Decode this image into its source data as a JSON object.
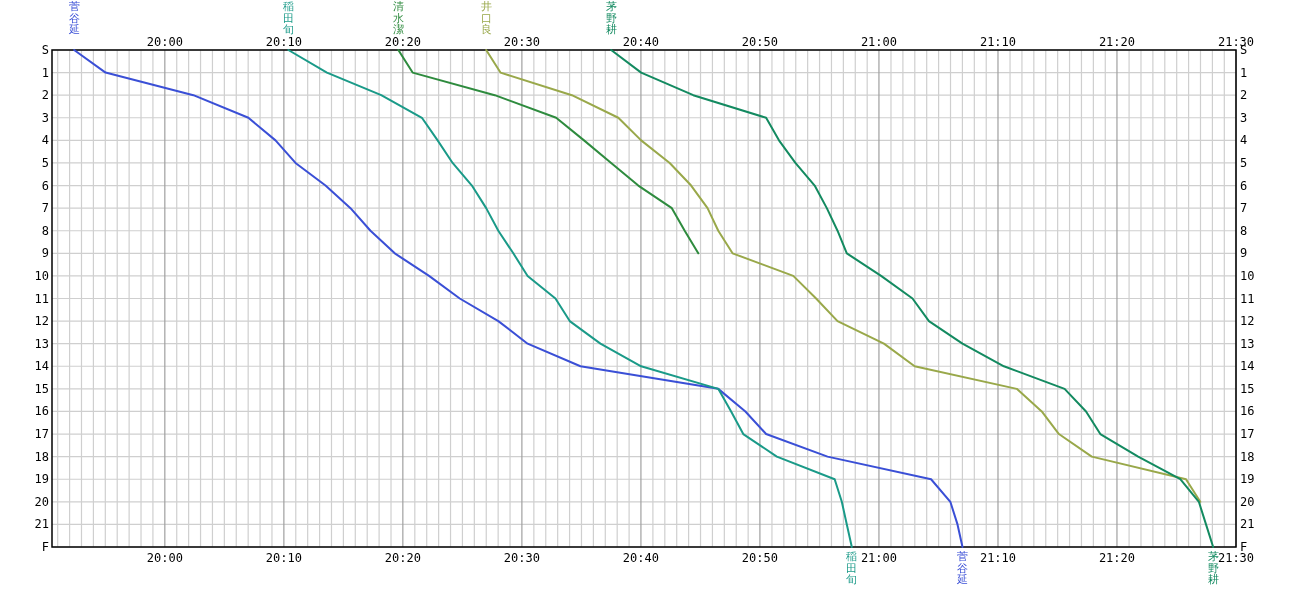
{
  "chart_data": {
    "type": "line",
    "grid": true,
    "xlim": [
      19.842,
      21.5
    ],
    "xticks": [
      {
        "value": 20,
        "label": "20:00"
      },
      {
        "value": 20.1667,
        "label": "20:10"
      },
      {
        "value": 20.3333,
        "label": "20:20"
      },
      {
        "value": 20.5,
        "label": "20:30"
      },
      {
        "value": 20.6667,
        "label": "20:40"
      },
      {
        "value": 20.8333,
        "label": "20:50"
      },
      {
        "value": 21,
        "label": "21:00"
      },
      {
        "value": 21.1667,
        "label": "21:10"
      },
      {
        "value": 21.3333,
        "label": "21:20"
      },
      {
        "value": 21.5,
        "label": "21:30"
      }
    ],
    "x2lim": [
      19.842,
      21.5
    ],
    "x2ticks": [
      {
        "value": 20,
        "label": "20:00"
      },
      {
        "value": 20.1667,
        "label": "20:10"
      },
      {
        "value": 20.3333,
        "label": "20:20"
      },
      {
        "value": 20.5,
        "label": "20:30"
      },
      {
        "value": 20.6667,
        "label": "20:40"
      },
      {
        "value": 20.8333,
        "label": "20:50"
      },
      {
        "value": 21,
        "label": "21:00"
      },
      {
        "value": 21.1667,
        "label": "21:10"
      },
      {
        "value": 21.3333,
        "label": "21:20"
      },
      {
        "value": 21.5,
        "label": "21:30"
      }
    ],
    "ylim": [
      22,
      0
    ],
    "yticks": [
      {
        "value": 0,
        "label": "S"
      },
      1,
      2,
      3,
      4,
      5,
      6,
      7,
      8,
      9,
      10,
      11,
      12,
      13,
      14,
      15,
      16,
      17,
      18,
      19,
      20,
      21,
      {
        "value": 22,
        "label": "F"
      }
    ],
    "y2lim": [
      22,
      0
    ],
    "y2ticks": [
      {
        "value": 0,
        "label": "S"
      },
      1,
      2,
      3,
      4,
      5,
      6,
      7,
      8,
      9,
      10,
      11,
      12,
      13,
      14,
      15,
      16,
      17,
      18,
      19,
      20,
      21,
      {
        "value": 22,
        "label": "F"
      }
    ],
    "series": [
      {
        "name": "菅谷延",
        "color": "#3a4fd6",
        "x": [
          19.873,
          19.917,
          20.04,
          20.117,
          20.155,
          20.183,
          20.225,
          20.26,
          20.288,
          20.322,
          20.37,
          20.413,
          20.467,
          20.508,
          20.582,
          20.775,
          20.813,
          20.842,
          20.928,
          21.073,
          21.1,
          21.11,
          21.117
        ],
        "values": [
          0,
          1,
          2,
          3,
          4,
          5,
          6,
          7,
          8,
          9,
          10,
          11,
          12,
          13,
          14,
          15,
          16,
          17,
          18,
          19,
          20,
          21,
          22
        ]
      },
      {
        "name": "稲田旬",
        "color": "#1a9a88",
        "x": [
          20.173,
          20.227,
          20.303,
          20.36,
          20.382,
          20.403,
          20.43,
          20.45,
          20.467,
          20.488,
          20.508,
          20.547,
          20.567,
          20.61,
          20.667,
          20.775,
          20.793,
          20.81,
          20.857,
          20.938,
          20.948,
          20.955,
          20.962
        ],
        "values": [
          0,
          1,
          2,
          3,
          4,
          5,
          6,
          7,
          8,
          9,
          10,
          11,
          12,
          13,
          14,
          15,
          16,
          17,
          18,
          19,
          20,
          21,
          22
        ]
      },
      {
        "name": "清水潔",
        "color": "#2e8b3e",
        "x": [
          20.327,
          20.347,
          20.462,
          20.548,
          20.587,
          20.625,
          20.663,
          20.71,
          20.728,
          20.747
        ],
        "values": [
          0,
          1,
          2,
          3,
          4,
          5,
          6,
          7,
          8,
          9
        ]
      },
      {
        "name": "井口良",
        "color": "#99a84a",
        "x": [
          20.45,
          20.47,
          20.57,
          20.635,
          20.667,
          20.707,
          20.737,
          20.76,
          20.775,
          20.795,
          20.88,
          20.912,
          20.942,
          21.007,
          21.05,
          21.193,
          21.228,
          21.252,
          21.298,
          21.43,
          21.45
        ],
        "values": [
          0,
          1,
          2,
          3,
          4,
          5,
          6,
          7,
          8,
          9,
          10,
          11,
          12,
          13,
          14,
          15,
          16,
          17,
          18,
          19,
          20
        ]
      },
      {
        "name": "茅野耕",
        "color": "#138a60",
        "x": [
          20.625,
          20.667,
          20.74,
          20.842,
          20.86,
          20.883,
          20.91,
          20.927,
          20.942,
          20.955,
          21.003,
          21.047,
          21.07,
          21.117,
          21.175,
          21.26,
          21.29,
          21.31,
          21.363,
          21.422,
          21.448,
          21.458,
          21.468
        ],
        "values": [
          0,
          1,
          2,
          3,
          4,
          5,
          6,
          7,
          8,
          9,
          10,
          11,
          12,
          13,
          14,
          15,
          16,
          17,
          18,
          19,
          20,
          21,
          22
        ]
      }
    ]
  }
}
